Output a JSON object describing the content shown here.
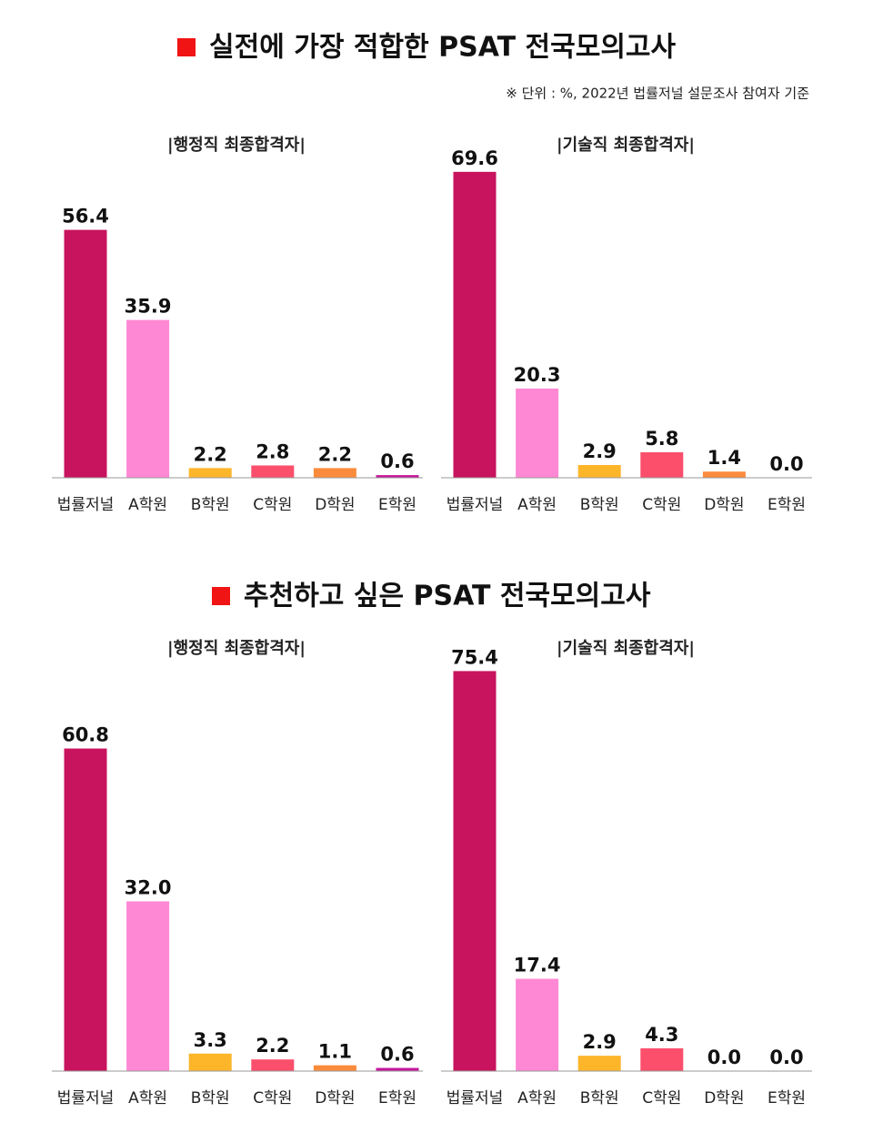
{
  "sections": [
    {
      "title": "실전에 가장 적합한 PSAT 전국모의고사"
    },
    {
      "title": "추천하고 싶은 PSAT 전국모의고사"
    }
  ],
  "note": "※ 단위 : %, 2022년 법률저널 설문조사 참여자 기준",
  "chart_data": [
    {
      "type": "bar",
      "subtitle": "|행정직 최종합격자|",
      "categories": [
        "법률저널",
        "A학원",
        "B학원",
        "C학원",
        "D학원",
        "E학원"
      ],
      "values": [
        56.4,
        35.9,
        2.2,
        2.8,
        2.2,
        0.6
      ],
      "value_labels": [
        "56.4",
        "35.9",
        "2.2",
        "2.8",
        "2.2",
        "0.6"
      ],
      "colors": [
        "#c8135e",
        "#ff88d4",
        "#fdb52a",
        "#fb4f6c",
        "#fb8b3c",
        "#c4169c"
      ]
    },
    {
      "type": "bar",
      "subtitle": "|기술직 최종합격자|",
      "categories": [
        "법률저널",
        "A학원",
        "B학원",
        "C학원",
        "D학원",
        "E학원"
      ],
      "values": [
        69.6,
        20.3,
        2.9,
        5.8,
        1.4,
        0.0
      ],
      "value_labels": [
        "69.6",
        "20.3",
        "2.9",
        "5.8",
        "1.4",
        "0.0"
      ],
      "colors": [
        "#c8135e",
        "#ff88d4",
        "#fdb52a",
        "#fb4f6c",
        "#fb8b3c",
        "#c4169c"
      ]
    },
    {
      "type": "bar",
      "subtitle": "|행정직 최종합격자|",
      "categories": [
        "법률저널",
        "A학원",
        "B학원",
        "C학원",
        "D학원",
        "E학원"
      ],
      "values": [
        60.8,
        32.0,
        3.3,
        2.2,
        1.1,
        0.6
      ],
      "value_labels": [
        "60.8",
        "32.0",
        "3.3",
        "2.2",
        "1.1",
        "0.6"
      ],
      "colors": [
        "#c8135e",
        "#ff88d4",
        "#fdb52a",
        "#fb4f6c",
        "#fb8b3c",
        "#c4169c"
      ]
    },
    {
      "type": "bar",
      "subtitle": "|기술직 최종합격자|",
      "categories": [
        "법률저널",
        "A학원",
        "B학원",
        "C학원",
        "D학원",
        "E학원"
      ],
      "values": [
        75.4,
        17.4,
        2.9,
        4.3,
        0.0,
        0.0
      ],
      "value_labels": [
        "75.4",
        "17.4",
        "2.9",
        "4.3",
        "0.0",
        "0.0"
      ],
      "colors": [
        "#c8135e",
        "#ff88d4",
        "#fdb52a",
        "#fb4f6c",
        "#fb8b3c",
        "#c4169c"
      ]
    }
  ]
}
